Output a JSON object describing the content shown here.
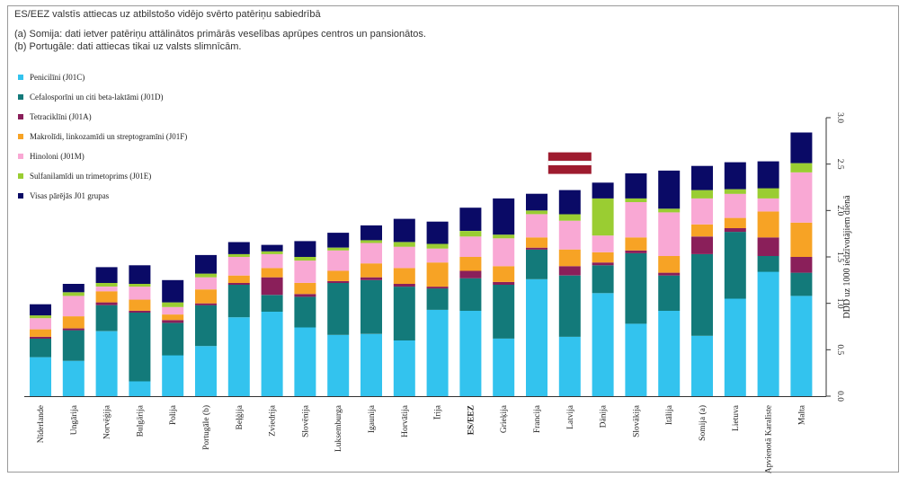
{
  "header": {
    "title": "ES/EEZ valstīs attiecas uz atbilstošo vidējo svērto patēriņu sabiedrībā",
    "note_a": "(a) Somija: dati ietver patēriņu attālinātos primārās veselības aprūpes centros un pansionātos.",
    "note_b": "(b) Portugāle: dati attiecas tikai uz valsts slimnīcām."
  },
  "chart_data": {
    "type": "bar",
    "stacked": true,
    "ylabel": "DDD uz 1000 iedzīvotājiem dienā",
    "ylim": [
      0,
      3.0
    ],
    "yticks": [
      "0.0",
      "0.5",
      "1.0",
      "1.5",
      "2.0",
      "2.5",
      "3.0"
    ],
    "y_axis_side": "right",
    "legend_position": "top-left",
    "grid": false,
    "categories": [
      "Nīderlande",
      "Ungārija",
      "Norvēģija",
      "Bulgārija",
      "Polija",
      "Portugāle (b)",
      "Beļģija",
      "Zviedrija",
      "Slovēnija",
      "Luksemburga",
      "Igaunija",
      "Horvātija",
      "Īrija",
      "ES/EEZ",
      "Grieķija",
      "Francija",
      "Latvija",
      "Dānija",
      "Slovākija",
      "Itālija",
      "Somija (a)",
      "Lietuva",
      "Apvienotā Karaliste",
      "Malta"
    ],
    "highlight_category": "Latvija",
    "bold_categories": [
      "ES/EEZ"
    ],
    "series": [
      {
        "name": "Penicilīni (J01C)",
        "color": "#33c3ee",
        "values": [
          0.42,
          0.38,
          0.7,
          0.16,
          0.44,
          0.54,
          0.85,
          0.91,
          0.74,
          0.66,
          0.67,
          0.6,
          0.93,
          0.92,
          0.62,
          1.26,
          0.64,
          1.11,
          0.78,
          0.92,
          0.65,
          1.05,
          1.34,
          1.08
        ]
      },
      {
        "name": "Cefalosporīni un citi beta-laktāmi (J01D)",
        "color": "#137a7a",
        "values": [
          0.2,
          0.33,
          0.28,
          0.74,
          0.35,
          0.44,
          0.35,
          0.18,
          0.33,
          0.56,
          0.58,
          0.58,
          0.23,
          0.35,
          0.58,
          0.32,
          0.66,
          0.3,
          0.76,
          0.38,
          0.88,
          0.72,
          0.17,
          0.25
        ]
      },
      {
        "name": "Tetraciklīni (J01A)",
        "color": "#8a1f5a",
        "values": [
          0.02,
          0.02,
          0.03,
          0.02,
          0.03,
          0.02,
          0.02,
          0.19,
          0.03,
          0.02,
          0.03,
          0.03,
          0.02,
          0.08,
          0.03,
          0.02,
          0.1,
          0.03,
          0.03,
          0.03,
          0.19,
          0.04,
          0.2,
          0.17
        ]
      },
      {
        "name": "Makrolīdi, linkozamīdi un streptogramīni (J01F)",
        "color": "#f7a325",
        "values": [
          0.08,
          0.13,
          0.12,
          0.12,
          0.06,
          0.15,
          0.08,
          0.1,
          0.12,
          0.11,
          0.15,
          0.17,
          0.26,
          0.15,
          0.17,
          0.11,
          0.18,
          0.11,
          0.14,
          0.18,
          0.13,
          0.11,
          0.28,
          0.37
        ]
      },
      {
        "name": "Hinoloni (J01M)",
        "color": "#f9a8d4",
        "values": [
          0.12,
          0.22,
          0.05,
          0.14,
          0.08,
          0.13,
          0.2,
          0.15,
          0.24,
          0.22,
          0.22,
          0.23,
          0.15,
          0.22,
          0.3,
          0.25,
          0.31,
          0.18,
          0.38,
          0.47,
          0.28,
          0.26,
          0.14,
          0.54
        ]
      },
      {
        "name": "Sulfanilamīdi un trimetoprims (J01E)",
        "color": "#9acd32",
        "values": [
          0.03,
          0.04,
          0.04,
          0.03,
          0.05,
          0.04,
          0.03,
          0.03,
          0.04,
          0.03,
          0.03,
          0.05,
          0.05,
          0.06,
          0.04,
          0.04,
          0.07,
          0.4,
          0.04,
          0.04,
          0.09,
          0.05,
          0.11,
          0.1
        ]
      },
      {
        "name": "Visas pārējās J01 grupas",
        "color": "#0a0a66",
        "values": [
          0.12,
          0.09,
          0.17,
          0.2,
          0.24,
          0.2,
          0.13,
          0.07,
          0.17,
          0.16,
          0.16,
          0.25,
          0.24,
          0.25,
          0.39,
          0.18,
          0.26,
          0.17,
          0.27,
          0.41,
          0.26,
          0.29,
          0.29,
          0.33
        ]
      }
    ]
  }
}
